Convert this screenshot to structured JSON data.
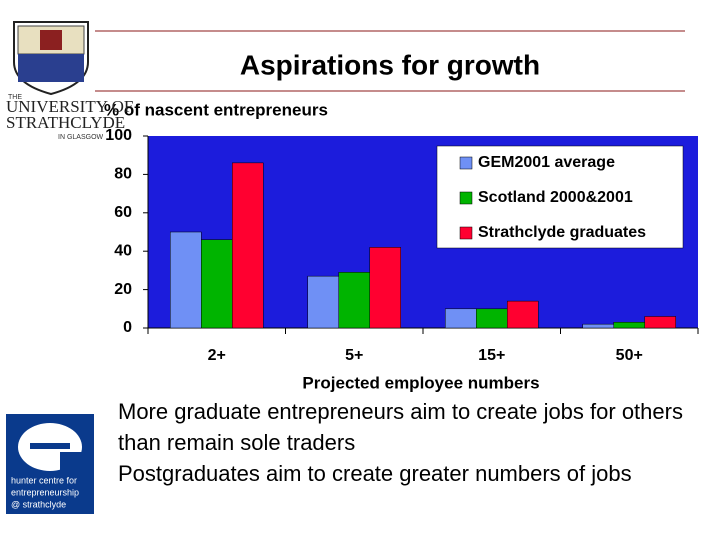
{
  "chart_data": {
    "type": "bar",
    "title": "Aspirations for growth",
    "y_label": "% of nascent entrepreneurs",
    "x_label": "Projected employee numbers",
    "categories": [
      "2+",
      "5+",
      "15+",
      "50+"
    ],
    "series": [
      {
        "name": "GEM2001 average",
        "color": "#6f90f5",
        "values": [
          50,
          27,
          10,
          2
        ]
      },
      {
        "name": "Scotland 2000&2001",
        "color": "#00b400",
        "values": [
          46,
          29,
          10,
          3
        ]
      },
      {
        "name": "Strathclyde graduates",
        "color": "#ff0030",
        "values": [
          86,
          42,
          14,
          6
        ]
      }
    ],
    "ylim": [
      0,
      100
    ],
    "yticks": [
      0,
      20,
      40,
      60,
      80,
      100
    ],
    "grid": false,
    "legend": "top-right",
    "plot_background": "#1c1cdc"
  },
  "bullets": [
    "More graduate entrepreneurs aim to create jobs for others than remain sole traders",
    "Postgraduates aim to create greater numbers of jobs"
  ],
  "logos": {
    "university": [
      "THE",
      "UNIVERSITY OF",
      "STRATHCLYDE",
      "IN GLASGOW"
    ],
    "hunter": [
      "hunter centre for",
      "entrepreneurship",
      "@ strathclyde"
    ]
  }
}
